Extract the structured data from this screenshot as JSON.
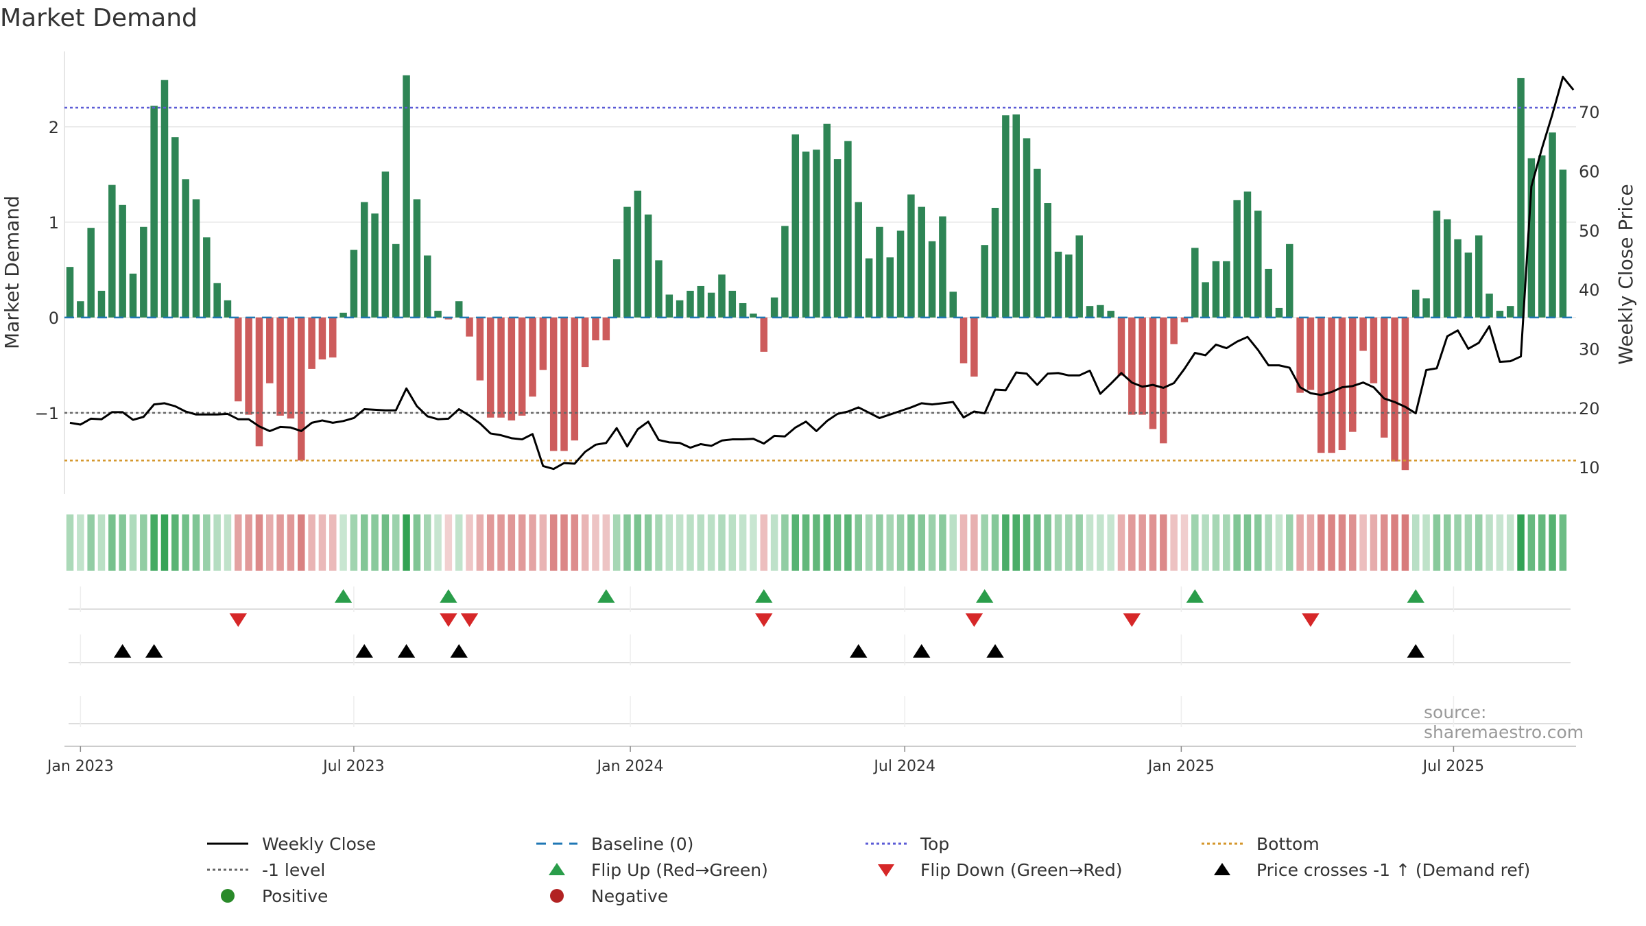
{
  "title": "Market Demand",
  "source": "source: sharemaestro.com",
  "colors": {
    "positive_bar": "#2e8555",
    "negative_bar": "#cd5c5c",
    "close_line": "#000000",
    "baseline": "#1f77b4",
    "top": "#5b5bd6",
    "bottom": "#d4962a",
    "minus_one": "#666666",
    "flip_up": "#2a9d4a",
    "flip_down": "#d62728",
    "cross": "#000000",
    "positive_dot": "#2a8a2a",
    "negative_dot": "#b22222",
    "grid": "#e6e6e6",
    "axis_text": "#333333"
  },
  "legend": [
    {
      "key": "weekly_close",
      "label": "Weekly Close",
      "kind": "line",
      "color": "#000000",
      "dash": ""
    },
    {
      "key": "baseline",
      "label": "Baseline (0)",
      "kind": "line",
      "color": "#1f77b4",
      "dash": "14,10"
    },
    {
      "key": "top",
      "label": "Top",
      "kind": "line",
      "color": "#5b5bd6",
      "dash": "4,4"
    },
    {
      "key": "bottom",
      "label": "Bottom",
      "kind": "line",
      "color": "#d4962a",
      "dash": "4,4"
    },
    {
      "key": "minus_one",
      "label": "-1 level",
      "kind": "line",
      "color": "#666666",
      "dash": "4,4"
    },
    {
      "key": "flip_up",
      "label": "Flip Up (Red→Green)",
      "kind": "tri-up",
      "color": "#2a9d4a"
    },
    {
      "key": "flip_down",
      "label": "Flip Down (Green→Red)",
      "kind": "tri-down",
      "color": "#d62728"
    },
    {
      "key": "cross",
      "label": "Price crosses -1 ↑ (Demand ref)",
      "kind": "tri-up",
      "color": "#000000"
    },
    {
      "key": "positive",
      "label": "Positive",
      "kind": "dot",
      "color": "#2a8a2a"
    },
    {
      "key": "negative",
      "label": "Negative",
      "kind": "dot",
      "color": "#b22222"
    }
  ],
  "chart_data": {
    "type": "bar",
    "title": "Market Demand",
    "ylabel": "Market Demand",
    "y2label": "Weekly Close Price",
    "ylim": [
      -1.85,
      2.79
    ],
    "y2lim": [
      5.5,
      80.2
    ],
    "y_ticks": [
      -1,
      0,
      1,
      2
    ],
    "y2_ticks": [
      10,
      20,
      30,
      40,
      50,
      60,
      70
    ],
    "x_ticks": [
      {
        "label": "Jan 2023",
        "week": 1
      },
      {
        "label": "Jul 2023",
        "week": 27
      },
      {
        "label": "Jan 2024",
        "week": 53.3
      },
      {
        "label": "Jul 2024",
        "week": 79.4
      },
      {
        "label": "Jan 2025",
        "week": 105.7
      },
      {
        "label": "Jul 2025",
        "week": 131.6
      }
    ],
    "levels": {
      "top": 2.2,
      "bottom": -1.5,
      "minus_one": -1,
      "baseline": 0
    },
    "start_week": "Jan 2023",
    "demand": [
      0.53,
      0.17,
      0.94,
      0.28,
      1.39,
      1.18,
      0.46,
      0.95,
      2.22,
      2.49,
      1.89,
      1.45,
      1.24,
      0.84,
      0.36,
      0.18,
      -0.88,
      -1.02,
      -1.35,
      -0.69,
      -1.03,
      -1.06,
      -1.5,
      -0.54,
      -0.44,
      -0.42,
      0.05,
      0.71,
      1.21,
      1.09,
      1.53,
      0.77,
      2.54,
      1.24,
      0.65,
      0.07,
      -0.02,
      0.17,
      -0.2,
      -0.66,
      -1.05,
      -1.05,
      -1.08,
      -1.03,
      -0.83,
      -0.55,
      -1.4,
      -1.4,
      -1.29,
      -0.52,
      -0.24,
      -0.24,
      0.61,
      1.16,
      1.33,
      1.08,
      0.6,
      0.24,
      0.18,
      0.28,
      0.33,
      0.26,
      0.45,
      0.28,
      0.15,
      0.04,
      -0.36,
      0.21,
      0.96,
      1.92,
      1.74,
      1.76,
      2.03,
      1.66,
      1.85,
      1.21,
      0.62,
      0.95,
      0.63,
      0.91,
      1.29,
      1.16,
      0.8,
      1.06,
      0.27,
      -0.48,
      -0.62,
      0.76,
      1.15,
      2.12,
      2.13,
      1.88,
      1.56,
      1.2,
      0.69,
      0.66,
      0.86,
      0.12,
      0.13,
      0.07,
      -0.61,
      -1.02,
      -1.02,
      -1.17,
      -1.32,
      -0.28,
      -0.05,
      0.73,
      0.37,
      0.59,
      0.59,
      1.23,
      1.32,
      1.12,
      0.51,
      0.1,
      0.77,
      -0.79,
      -0.76,
      -1.42,
      -1.42,
      -1.39,
      -1.2,
      -0.35,
      -0.69,
      -1.26,
      -1.51,
      -1.6,
      0.29,
      0.2,
      1.12,
      1.03,
      0.82,
      0.68,
      0.86,
      0.25,
      0.07,
      0.12,
      2.51,
      1.67,
      1.7,
      1.94,
      1.55
    ],
    "close": [
      17.5,
      17.2,
      18.2,
      18.1,
      19.3,
      19.3,
      18.0,
      18.5,
      20.6,
      20.8,
      20.3,
      19.4,
      18.9,
      18.9,
      18.9,
      19.0,
      18.1,
      18.1,
      16.9,
      16.1,
      16.8,
      16.7,
      16.1,
      17.5,
      17.9,
      17.5,
      17.8,
      18.3,
      19.8,
      19.7,
      19.6,
      19.6,
      23.3,
      20.3,
      18.6,
      18.1,
      18.2,
      19.8,
      18.7,
      17.4,
      15.7,
      15.4,
      14.9,
      14.7,
      15.6,
      10.2,
      9.7,
      10.7,
      10.6,
      12.6,
      13.8,
      14.1,
      16.6,
      13.5,
      16.4,
      17.7,
      14.6,
      14.2,
      14.1,
      13.3,
      13.9,
      13.6,
      14.5,
      14.7,
      14.7,
      14.8,
      14.0,
      15.3,
      15.2,
      16.7,
      17.7,
      16.1,
      17.8,
      19.0,
      19.4,
      20.1,
      19.2,
      18.3,
      18.9,
      19.5,
      20.1,
      20.8,
      20.6,
      20.8,
      21.0,
      18.4,
      19.4,
      19.1,
      23.1,
      23.0,
      26.0,
      25.8,
      23.9,
      25.8,
      25.9,
      25.5,
      25.5,
      26.3,
      22.4,
      24.1,
      25.9,
      24.3,
      23.6,
      23.9,
      23.4,
      24.2,
      26.6,
      29.3,
      28.9,
      30.7,
      30.1,
      31.2,
      32.0,
      29.8,
      27.2,
      27.2,
      26.8,
      23.5,
      22.5,
      22.2,
      22.7,
      23.5,
      23.7,
      24.3,
      23.5,
      21.6,
      21.0,
      20.2,
      19.1,
      26.4,
      26.7,
      32.1,
      33.1,
      30.0,
      31.0,
      33.8,
      27.8,
      27.9,
      28.7,
      57.4,
      63.8,
      69.6,
      75.9,
      73.7
    ],
    "flip_up_weeks": [
      26,
      36,
      51,
      66,
      87,
      107,
      128
    ],
    "flip_down_weeks": [
      16,
      36,
      38,
      66,
      86,
      101,
      118
    ],
    "cross_up_weeks": [
      5,
      8,
      28,
      32,
      37,
      75,
      81,
      88,
      128
    ]
  }
}
